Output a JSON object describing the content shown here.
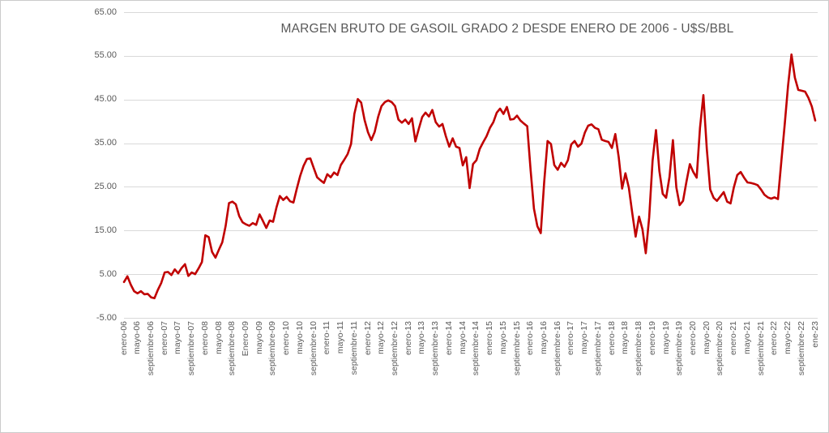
{
  "title": "MARGEN BRUTO DE GASOIL GRADO 2 DESDE ENERO DE 2006 - U$S/BBL",
  "colors": {
    "line": "#C00000",
    "gridline": "#D9D9D9",
    "axis_text": "#595959",
    "title_text": "#595959",
    "background": "#FFFFFF",
    "border": "#CBCBCB"
  },
  "chart_data": {
    "type": "line",
    "title": "MARGEN BRUTO DE GASOIL GRADO 2 DESDE ENERO DE 2006 - U$S/BBL",
    "frequency": "monthly",
    "x_start": "enero-06",
    "x_end": "ene-23",
    "ylim": [
      -5,
      65
    ],
    "grid": true,
    "legend": false,
    "line_color": "#C00000",
    "y_tick_labels": [
      "65.00",
      "55.00",
      "45.00",
      "35.00",
      "25.00",
      "15.00",
      "5.00",
      "-5.00"
    ],
    "y_tick_values": [
      65,
      55,
      45,
      35,
      25,
      15,
      5,
      -5
    ],
    "x_tick_every_n_months": 4,
    "x_tick_labels": [
      "enero-06",
      "mayo-06",
      "septiembre-06",
      "enero-07",
      "mayo-07",
      "septiembre-07",
      "enero-08",
      "mayo-08",
      "septiembre-08",
      "Enero-09",
      "mayo-09",
      "septiembre-09",
      "enero-10",
      "mayo-10",
      "septiembre-10",
      "enero-11",
      "mayo-11",
      "septiembre-11",
      "enero-12",
      "mayo-12",
      "septiembre-12",
      "enero-13",
      "mayo-13",
      "septiembre-13",
      "enero-14",
      "mayo-14",
      "septiembre-14",
      "enero-15",
      "mayo-15",
      "septiembre-15",
      "enero-16",
      "mayo-16",
      "septiembre-16",
      "enero-17",
      "mayo-17",
      "septiembre-17",
      "enero-18",
      "mayo-18",
      "septiembre-18",
      "enero-19",
      "mayo-19",
      "septiembre-19",
      "enero-20",
      "mayo-20",
      "septiembre-20",
      "enero-21",
      "mayo-21",
      "septiembre-21",
      "enero-22",
      "mayo-22",
      "septiembre-22",
      "ene-23"
    ],
    "values": [
      3.2,
      4.5,
      2.6,
      1.1,
      0.6,
      1.1,
      0.4,
      0.5,
      -0.3,
      -0.5,
      1.4,
      3.0,
      5.4,
      5.5,
      4.8,
      6.1,
      5.2,
      6.4,
      7.3,
      4.6,
      5.4,
      5.0,
      6.3,
      7.8,
      13.9,
      13.5,
      10.1,
      8.8,
      10.6,
      12.3,
      16.0,
      21.3,
      21.6,
      21.0,
      18.3,
      16.9,
      16.4,
      16.1,
      16.7,
      16.3,
      18.7,
      17.2,
      15.6,
      17.3,
      17.0,
      20.3,
      22.9,
      22.0,
      22.7,
      21.7,
      21.4,
      24.6,
      27.5,
      29.8,
      31.4,
      31.5,
      29.3,
      27.2,
      26.5,
      25.9,
      27.9,
      27.2,
      28.3,
      27.7,
      30.0,
      31.2,
      32.5,
      34.8,
      41.7,
      45.1,
      44.3,
      40.3,
      37.5,
      35.7,
      37.6,
      41.0,
      43.5,
      44.4,
      44.8,
      44.4,
      43.5,
      40.4,
      39.7,
      40.4,
      39.4,
      40.7,
      35.4,
      38.3,
      41.0,
      42.0,
      41.1,
      42.6,
      39.8,
      38.8,
      39.4,
      36.6,
      34.2,
      36.1,
      34.2,
      33.9,
      29.9,
      31.8,
      24.7,
      30.2,
      31.1,
      33.7,
      35.2,
      36.6,
      38.5,
      39.8,
      42.0,
      42.9,
      41.7,
      43.3,
      40.4,
      40.5,
      41.3,
      40.2,
      39.5,
      38.9,
      28.8,
      20.0,
      16.0,
      14.4,
      26.0,
      35.5,
      34.8,
      30.0,
      28.9,
      30.5,
      29.6,
      31.1,
      34.7,
      35.5,
      34.2,
      34.9,
      37.4,
      39.0,
      39.3,
      38.5,
      38.2,
      35.8,
      35.5,
      35.3,
      33.9,
      37.1,
      31.8,
      24.6,
      28.1,
      24.8,
      19.0,
      13.6,
      18.2,
      15.3,
      9.8,
      18.0,
      31.0,
      38.0,
      28.6,
      23.4,
      22.5,
      27.3,
      35.7,
      24.9,
      20.8,
      21.8,
      26.2,
      30.2,
      28.4,
      27.1,
      38.5,
      46.0,
      33.7,
      24.4,
      22.5,
      21.8,
      22.8,
      23.8,
      21.6,
      21.2,
      24.9,
      27.7,
      28.4,
      27.1,
      26.0,
      25.9,
      25.7,
      25.4,
      24.4,
      23.2,
      22.6,
      22.3,
      22.6,
      22.2,
      30.9,
      39.4,
      48.2,
      55.3,
      50.0,
      47.2,
      47.0,
      46.8,
      45.4,
      43.4,
      40.2
    ]
  }
}
